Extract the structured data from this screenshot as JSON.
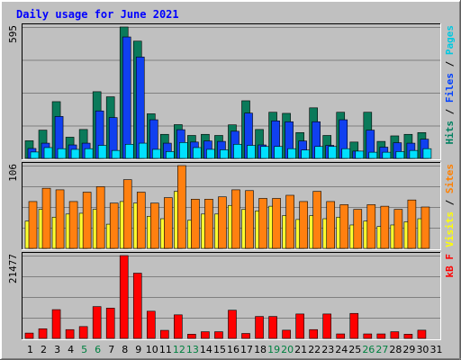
{
  "chart_data": {
    "type": "bar",
    "title": "Daily usage for June 2021",
    "days": [
      "1",
      "2",
      "3",
      "4",
      "5",
      "6",
      "7",
      "8",
      "9",
      "10",
      "11",
      "12",
      "13",
      "14",
      "15",
      "16",
      "17",
      "18",
      "19",
      "20",
      "21",
      "22",
      "23",
      "24",
      "25",
      "26",
      "27",
      "28",
      "29",
      "30",
      "31"
    ],
    "weekend_days": [
      "5",
      "6",
      "12",
      "13",
      "19",
      "20",
      "26",
      "27"
    ],
    "weekday_color": "#000000",
    "weekend_color": "#008040",
    "panels": [
      {
        "name": "hits-files-pages",
        "ymax_label": "595",
        "ymax": 595,
        "legend": [
          {
            "text": "Pages",
            "color": "#00c8e0"
          },
          {
            "text": " / ",
            "color": "#000000"
          },
          {
            "text": "Files",
            "color": "#0040ff"
          },
          {
            "text": " / ",
            "color": "#000000"
          },
          {
            "text": "Hits",
            "color": "#008060"
          }
        ],
        "series": [
          {
            "name": "Hits",
            "color": "#0a7a5a",
            "values": [
              80,
              128,
              257,
              96,
              131,
              302,
              279,
              595,
              531,
              202,
              109,
              153,
              104,
              109,
              104,
              152,
              261,
              131,
              209,
              204,
              117,
              229,
              104,
              209,
              74,
              209,
              77,
              102,
              109,
              117,
              0
            ]
          },
          {
            "name": "Files",
            "color": "#1040f0",
            "values": [
              45,
              69,
              190,
              61,
              69,
              215,
              185,
              550,
              459,
              175,
              69,
              130,
              74,
              79,
              77,
              123,
              205,
              61,
              170,
              166,
              79,
              166,
              59,
              175,
              33,
              128,
              51,
              71,
              69,
              87,
              0
            ]
          },
          {
            "name": "Pages",
            "color": "#00e0ff",
            "values": [
              29,
              49,
              44,
              41,
              44,
              59,
              36,
              64,
              69,
              41,
              31,
              72,
              49,
              41,
              39,
              64,
              59,
              54,
              54,
              44,
              38,
              54,
              54,
              44,
              33,
              28,
              28,
              31,
              36,
              44,
              0
            ]
          }
        ]
      },
      {
        "name": "sites-visits",
        "ymax_label": "106",
        "ymax": 106,
        "legend": [
          {
            "text": "Sites",
            "color": "#ff8000"
          },
          {
            "text": " / ",
            "color": "#000000"
          },
          {
            "text": "Visits",
            "color": "#ffff00"
          }
        ],
        "series": [
          {
            "name": "Visits",
            "color": "#ffff30",
            "values": [
              35,
              50,
              40,
              44,
              45,
              50,
              31,
              60,
              58,
              41,
              38,
              73,
              36,
              44,
              44,
              55,
              50,
              48,
              54,
              42,
              37,
              42,
              38,
              40,
              30,
              35,
              28,
              30,
              34,
              38,
              0
            ]
          },
          {
            "name": "Sites",
            "color": "#ff8010",
            "values": [
              60,
              77,
              75,
              60,
              72,
              79,
              58,
              88,
              72,
              58,
              65,
              106,
              63,
              63,
              66,
              75,
              74,
              64,
              64,
              68,
              60,
              73,
              60,
              56,
              50,
              56,
              54,
              50,
              62,
              53,
              0
            ]
          }
        ]
      },
      {
        "name": "kbytes",
        "ymax_label": "21477",
        "ymax": 21477,
        "legend": [
          {
            "text": "kB F",
            "color": "#ff0000"
          }
        ],
        "series": [
          {
            "name": "kB F",
            "color": "#ff0000",
            "values": [
              1380,
              2500,
              7460,
              2280,
              3070,
              8250,
              7860,
              21477,
              16920,
              7050,
              2090,
              6110,
              1080,
              1730,
              1730,
              7310,
              1280,
              5690,
              5690,
              2130,
              6330,
              2280,
              6330,
              1160,
              6480,
              1160,
              1160,
              1730,
              1080,
              2130,
              0
            ]
          }
        ]
      }
    ]
  }
}
